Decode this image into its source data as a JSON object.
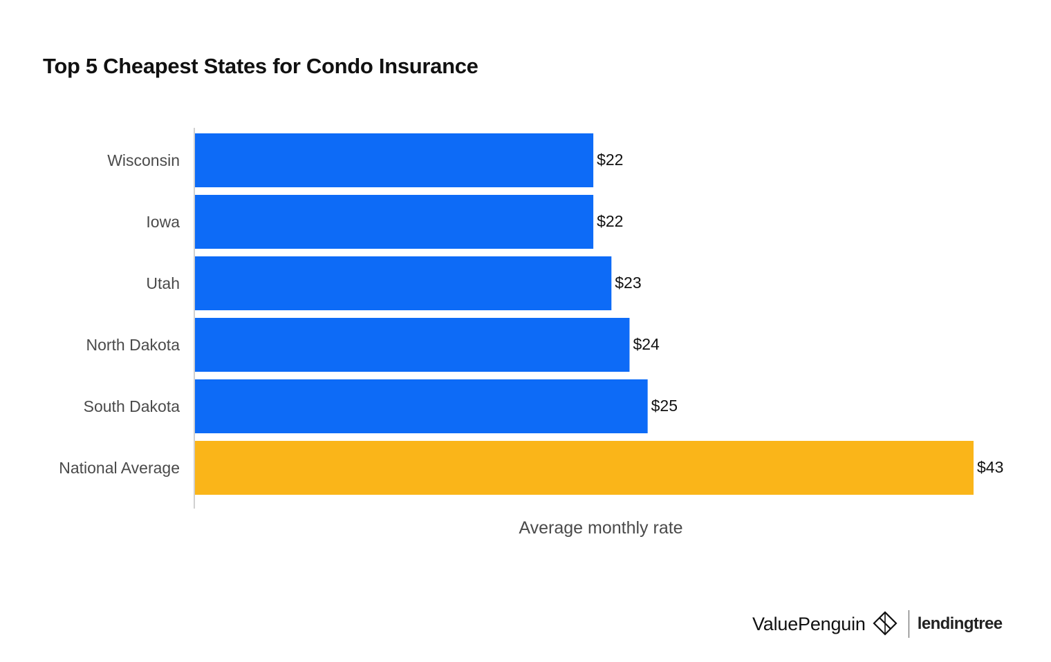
{
  "title": "Top 5 Cheapest States for Condo Insurance",
  "chart_data": {
    "type": "bar",
    "orientation": "horizontal",
    "title": "Top 5 Cheapest States for Condo Insurance",
    "xlabel": "Average monthly rate",
    "ylabel": "",
    "categories": [
      "Wisconsin",
      "Iowa",
      "Utah",
      "North Dakota",
      "South Dakota",
      "National Average"
    ],
    "values": [
      22,
      22,
      23,
      24,
      25,
      43
    ],
    "data_labels": [
      "$22",
      "$22",
      "$23",
      "$24",
      "$25",
      "$43"
    ],
    "xlim": [
      0,
      43
    ],
    "grid": false,
    "legend": "none",
    "colors": {
      "states": "#0d6bf7",
      "national_average": "#fab519"
    }
  },
  "footer": {
    "brand_left": "ValuePenguin",
    "brand_left_icon": "valuepenguin-logo-icon",
    "brand_right": "lendingtree"
  }
}
